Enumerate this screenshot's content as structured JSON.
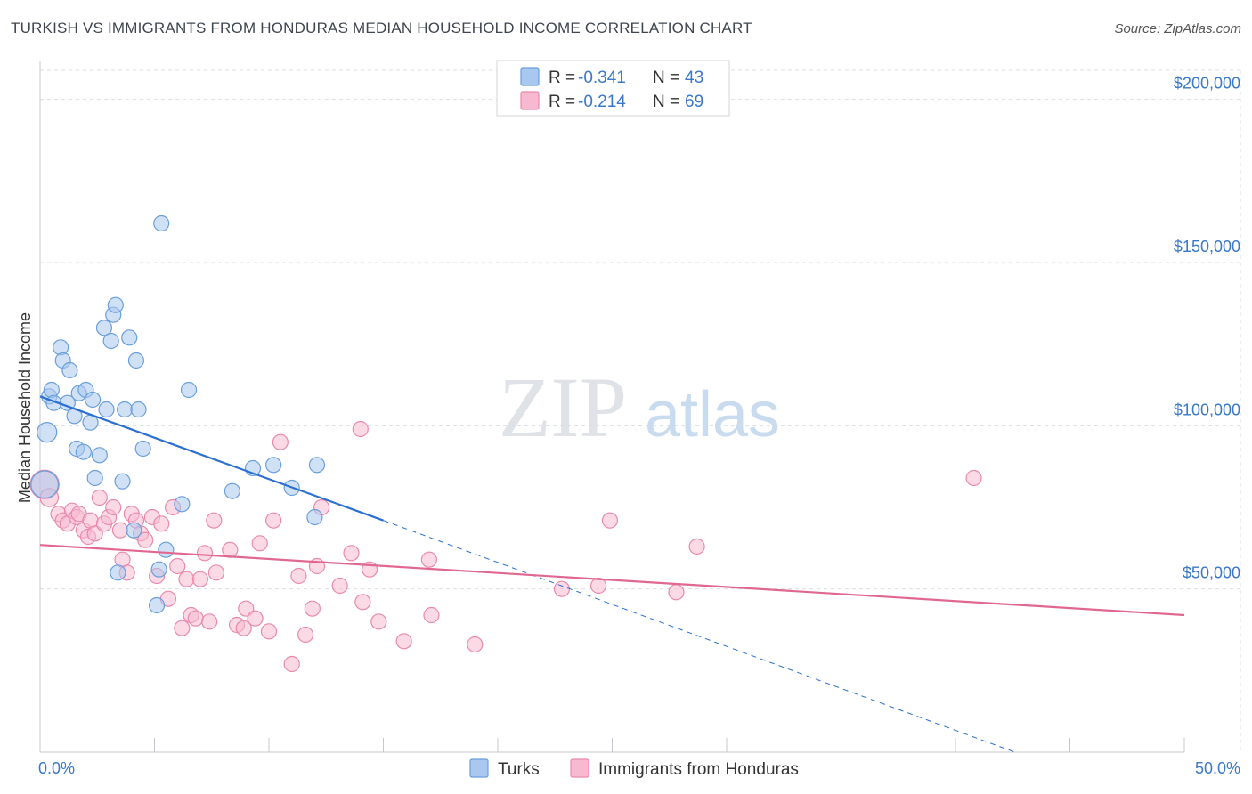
{
  "title": "TURKISH VS IMMIGRANTS FROM HONDURAS MEDIAN HOUSEHOLD INCOME CORRELATION CHART",
  "source": "Source: ZipAtlas.com",
  "watermark": {
    "zip": "ZIP",
    "atlas": "atlas"
  },
  "colors": {
    "turks_fill": "#a9c8ef",
    "turks_stroke": "#6a9fdc",
    "turks_line": "#2a6fd1",
    "honduras_fill": "#f7b9cf",
    "honduras_stroke": "#e98aad",
    "honduras_line": "#e06890",
    "accent_text": "#3a78c9",
    "grid": "#d9dde3"
  },
  "legend": {
    "rows": [
      {
        "r_label": "R = ",
        "r_value": "-0.341",
        "n_label": "N = ",
        "n_value": "43"
      },
      {
        "r_label": "R = ",
        "r_value": "-0.214",
        "n_label": "N = ",
        "n_value": "69"
      }
    ]
  },
  "chart_data": {
    "type": "scatter",
    "title": "TURKISH VS IMMIGRANTS FROM HONDURAS MEDIAN HOUSEHOLD INCOME CORRELATION CHART",
    "xlabel": "",
    "ylabel": "Median Household Income",
    "xlim": [
      0,
      50
    ],
    "ylim": [
      0,
      210000
    ],
    "x_tick_labels": [
      "0.0%",
      "50.0%"
    ],
    "y_ticks": [
      50000,
      100000,
      150000,
      200000
    ],
    "y_tick_labels": [
      "$50,000",
      "$100,000",
      "$150,000",
      "$200,000"
    ],
    "series": [
      {
        "name": "Turks",
        "R": -0.341,
        "N": 43,
        "trend": {
          "x0": 0,
          "y0": 109000,
          "x1": 15,
          "y1": 71000,
          "dash_to_x": 42.6,
          "dash_to_y": 0
        },
        "points": [
          [
            0.2,
            82000,
            1.8
          ],
          [
            0.3,
            98000,
            1.3
          ],
          [
            0.4,
            109000,
            1
          ],
          [
            0.5,
            111000,
            1
          ],
          [
            0.6,
            107000,
            1
          ],
          [
            0.9,
            124000,
            1
          ],
          [
            1.0,
            120000,
            1
          ],
          [
            1.2,
            107000,
            1
          ],
          [
            1.3,
            117000,
            1
          ],
          [
            1.5,
            103000,
            1
          ],
          [
            1.6,
            93000,
            1
          ],
          [
            1.7,
            110000,
            1
          ],
          [
            1.9,
            92000,
            1
          ],
          [
            2.0,
            111000,
            1
          ],
          [
            2.2,
            101000,
            1
          ],
          [
            2.3,
            108000,
            1
          ],
          [
            2.4,
            84000,
            1
          ],
          [
            2.6,
            91000,
            1
          ],
          [
            2.8,
            130000,
            1
          ],
          [
            2.9,
            105000,
            1
          ],
          [
            3.1,
            126000,
            1
          ],
          [
            3.2,
            134000,
            1
          ],
          [
            3.3,
            137000,
            1
          ],
          [
            3.4,
            55000,
            1
          ],
          [
            3.6,
            83000,
            1
          ],
          [
            3.7,
            105000,
            1
          ],
          [
            3.9,
            127000,
            1
          ],
          [
            4.1,
            68000,
            1
          ],
          [
            4.2,
            120000,
            1
          ],
          [
            4.3,
            105000,
            1
          ],
          [
            4.5,
            93000,
            1
          ],
          [
            5.1,
            45000,
            1
          ],
          [
            5.2,
            56000,
            1
          ],
          [
            5.3,
            162000,
            1
          ],
          [
            5.5,
            62000,
            1
          ],
          [
            6.2,
            76000,
            1
          ],
          [
            6.5,
            111000,
            1
          ],
          [
            8.4,
            80000,
            1
          ],
          [
            9.3,
            87000,
            1
          ],
          [
            10.2,
            88000,
            1
          ],
          [
            11.0,
            81000,
            1
          ],
          [
            12.0,
            72000,
            1
          ],
          [
            12.1,
            88000,
            1
          ]
        ]
      },
      {
        "name": "Immigrants from Honduras",
        "R": -0.214,
        "N": 69,
        "trend": {
          "x0": 0,
          "y0": 63500,
          "x1": 50,
          "y1": 42000
        },
        "points": [
          [
            0.2,
            82000,
            1.9
          ],
          [
            0.4,
            78000,
            1.2
          ],
          [
            0.8,
            73000,
            1
          ],
          [
            1.0,
            71000,
            1
          ],
          [
            1.2,
            70000,
            1
          ],
          [
            1.4,
            74000,
            1
          ],
          [
            1.6,
            72000,
            1
          ],
          [
            1.7,
            73000,
            1
          ],
          [
            1.9,
            68000,
            1
          ],
          [
            2.1,
            66000,
            1
          ],
          [
            2.2,
            71000,
            1
          ],
          [
            2.4,
            67000,
            1
          ],
          [
            2.6,
            78000,
            1
          ],
          [
            2.8,
            70000,
            1
          ],
          [
            3.0,
            72000,
            1
          ],
          [
            3.2,
            75000,
            1
          ],
          [
            3.5,
            68000,
            1
          ],
          [
            3.6,
            59000,
            1
          ],
          [
            3.8,
            55000,
            1
          ],
          [
            4.0,
            73000,
            1
          ],
          [
            4.2,
            71000,
            1
          ],
          [
            4.4,
            67000,
            1
          ],
          [
            4.6,
            65000,
            1
          ],
          [
            4.9,
            72000,
            1
          ],
          [
            5.1,
            54000,
            1
          ],
          [
            5.3,
            70000,
            1
          ],
          [
            5.6,
            47000,
            1
          ],
          [
            5.8,
            75000,
            1
          ],
          [
            6.0,
            57000,
            1
          ],
          [
            6.2,
            38000,
            1
          ],
          [
            6.4,
            53000,
            1
          ],
          [
            6.6,
            42000,
            1
          ],
          [
            6.8,
            41000,
            1
          ],
          [
            7.0,
            53000,
            1
          ],
          [
            7.2,
            61000,
            1
          ],
          [
            7.4,
            40000,
            1
          ],
          [
            7.6,
            71000,
            1
          ],
          [
            7.7,
            55000,
            1
          ],
          [
            8.3,
            62000,
            1
          ],
          [
            8.6,
            39000,
            1
          ],
          [
            8.9,
            38000,
            1
          ],
          [
            9.0,
            44000,
            1
          ],
          [
            9.4,
            41000,
            1
          ],
          [
            9.6,
            64000,
            1
          ],
          [
            10.0,
            37000,
            1
          ],
          [
            10.2,
            71000,
            1
          ],
          [
            10.5,
            95000,
            1
          ],
          [
            11.0,
            27000,
            1
          ],
          [
            11.3,
            54000,
            1
          ],
          [
            11.6,
            36000,
            1
          ],
          [
            11.9,
            44000,
            1
          ],
          [
            12.1,
            57000,
            1
          ],
          [
            12.3,
            75000,
            1
          ],
          [
            13.1,
            51000,
            1
          ],
          [
            13.6,
            61000,
            1
          ],
          [
            14.1,
            46000,
            1
          ],
          [
            14.4,
            56000,
            1
          ],
          [
            14.8,
            40000,
            1
          ],
          [
            14.0,
            99000,
            1
          ],
          [
            15.9,
            34000,
            1
          ],
          [
            17.0,
            59000,
            1
          ],
          [
            17.1,
            42000,
            1
          ],
          [
            19.0,
            33000,
            1
          ],
          [
            22.8,
            50000,
            1
          ],
          [
            24.4,
            51000,
            1
          ],
          [
            24.9,
            71000,
            1
          ],
          [
            27.8,
            49000,
            1
          ],
          [
            28.7,
            63000,
            1
          ],
          [
            40.8,
            84000,
            1
          ]
        ]
      }
    ]
  }
}
